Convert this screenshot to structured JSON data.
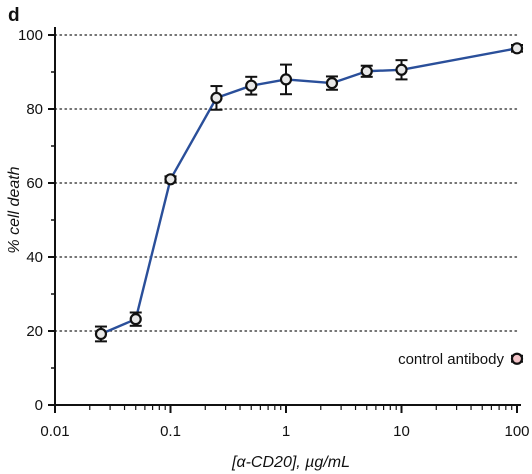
{
  "panel_label": "d",
  "chart_data": {
    "type": "line",
    "xscale": "log",
    "xlim": [
      0.01,
      100
    ],
    "ylim": [
      0,
      100
    ],
    "xlabel": "[α-CD20], µg/mL",
    "ylabel": "% cell death",
    "xticks": [
      {
        "value": 0.01,
        "label": "0.01"
      },
      {
        "value": 0.1,
        "label": "0.1"
      },
      {
        "value": 1,
        "label": "1"
      },
      {
        "value": 10,
        "label": "10"
      },
      {
        "value": 100,
        "label": "100"
      }
    ],
    "yticks": [
      {
        "value": 0,
        "label": "0"
      },
      {
        "value": 20,
        "label": "20"
      },
      {
        "value": 40,
        "label": "40"
      },
      {
        "value": 60,
        "label": "60"
      },
      {
        "value": 80,
        "label": "80"
      },
      {
        "value": 100,
        "label": "100"
      }
    ],
    "grid": "horizontal dotted",
    "line_color": "#2a4f9a",
    "marker_fill": "#e8e8e8",
    "marker_stroke": "#111111",
    "series": [
      {
        "points": [
          {
            "x": 0.025,
            "y": 19.2,
            "err": 2.0
          },
          {
            "x": 0.05,
            "y": 23.2,
            "err": 1.8
          },
          {
            "x": 0.1,
            "y": 61.0,
            "err": 0.8
          },
          {
            "x": 0.25,
            "y": 83.0,
            "err": 3.2
          },
          {
            "x": 0.5,
            "y": 86.3,
            "err": 2.4
          },
          {
            "x": 1.0,
            "y": 88.0,
            "err": 4.0
          },
          {
            "x": 2.5,
            "y": 87.0,
            "err": 1.8
          },
          {
            "x": 5.0,
            "y": 90.2,
            "err": 1.5
          },
          {
            "x": 10.0,
            "y": 90.6,
            "err": 2.6
          },
          {
            "x": 100.0,
            "y": 96.4,
            "err": 0.9
          }
        ]
      }
    ],
    "control": {
      "label": "control antibody",
      "y": 12.5,
      "marker_fill": "#f2c4c8",
      "err": 0.8
    }
  }
}
